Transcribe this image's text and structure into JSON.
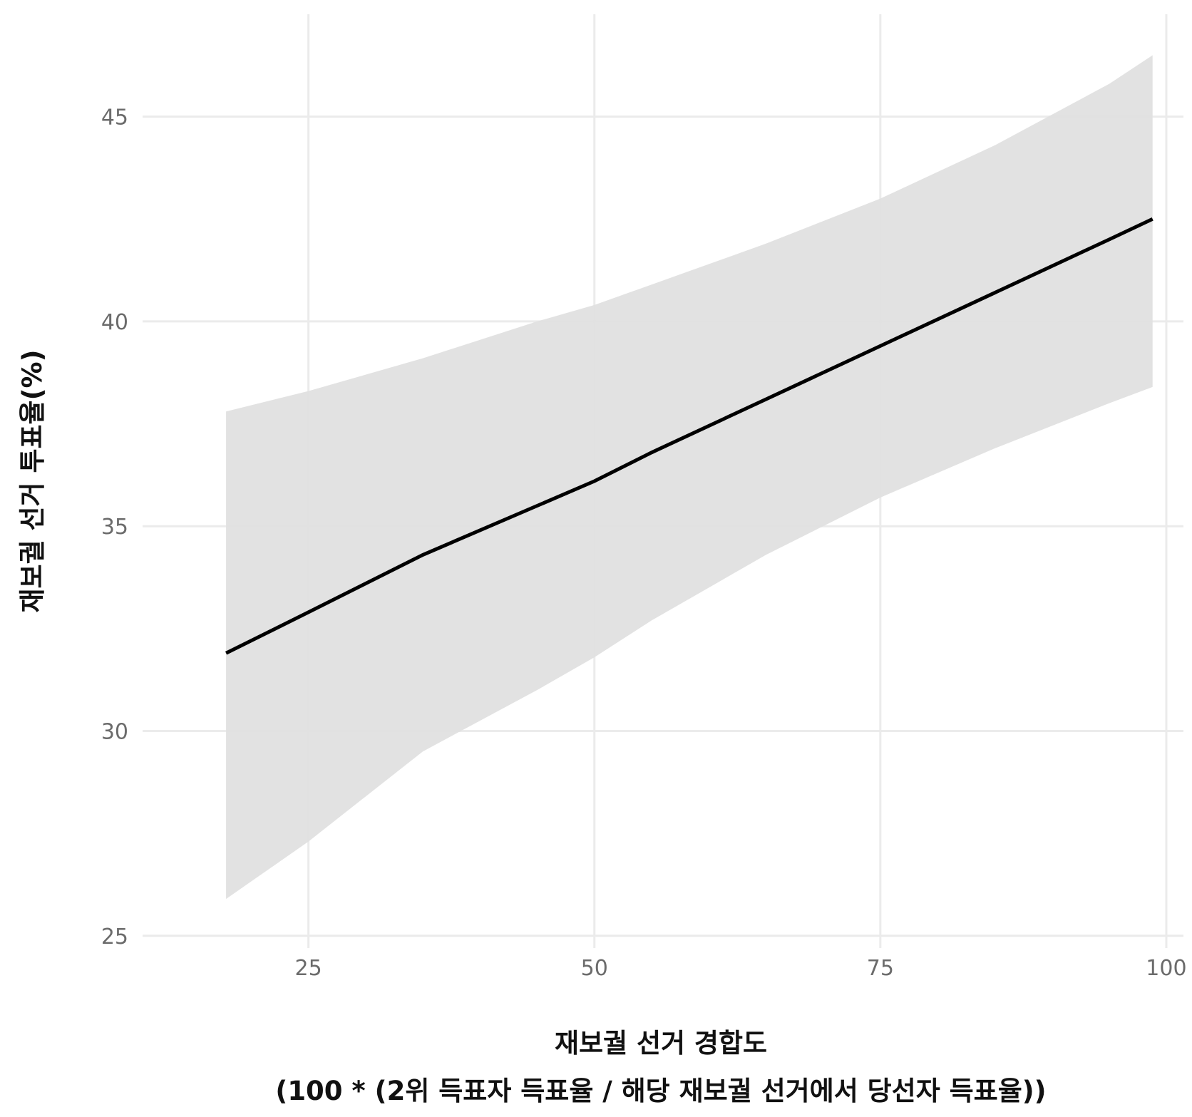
{
  "chart_data": {
    "type": "line",
    "title": "",
    "xlabel_lines": [
      "재보궐 선거 경합도",
      "(100 * (2위 득표자 득표율 / 해당 재보궐 선거에서 당선자 득표율))"
    ],
    "ylabel": "재보궐 선거 투표율(%)",
    "xlim": [
      10.5,
      101.5
    ],
    "ylim": [
      24.7,
      47.5
    ],
    "x_ticks": [
      25,
      50,
      75,
      100
    ],
    "y_ticks": [
      25,
      30,
      35,
      40,
      45
    ],
    "grid": true,
    "line_color": "#000000",
    "band_color": "#e0e0e0",
    "series": [
      {
        "x": [
          17.8,
          25,
          35,
          45,
          50,
          55,
          65,
          75,
          85,
          95,
          98.8
        ],
        "y": [
          31.9,
          32.9,
          34.3,
          35.5,
          36.1,
          36.8,
          38.1,
          39.4,
          40.7,
          42.0,
          42.5
        ],
        "lower": [
          25.9,
          27.3,
          29.5,
          31.0,
          31.8,
          32.7,
          34.3,
          35.7,
          36.9,
          38.0,
          38.4
        ],
        "upper": [
          37.8,
          38.3,
          39.1,
          40.0,
          40.4,
          40.9,
          41.9,
          43.0,
          44.3,
          45.8,
          46.5
        ]
      }
    ]
  }
}
